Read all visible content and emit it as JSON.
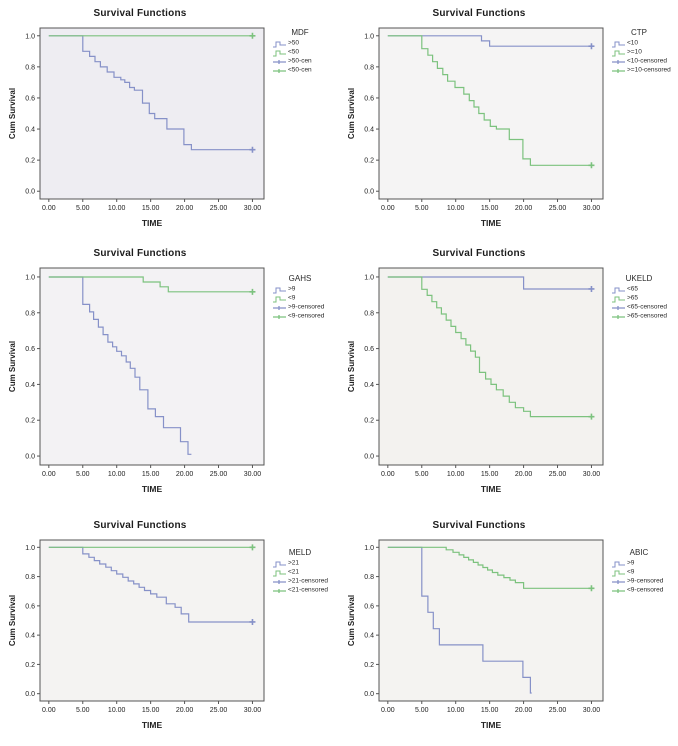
{
  "colors": {
    "blue": "#8691c8",
    "green": "#7cc27e",
    "frame": "#555555",
    "tick_text": "#222222"
  },
  "chart_data": [
    {
      "type": "line",
      "title": "Survival Functions",
      "xlabel": "TIME",
      "ylabel": "Cum Survival",
      "xlim": [
        0,
        30
      ],
      "ylim": [
        0,
        1
      ],
      "grid": false,
      "plot_bg": "#eeedf2",
      "xticks": [
        "0.00",
        "5.00",
        "10.00",
        "15.00",
        "20.00",
        "25.00",
        "30.00"
      ],
      "yticks": [
        "0.0",
        "0.2",
        "0.4",
        "0.6",
        "0.8",
        "1.0"
      ],
      "legend": {
        "title": "MDF",
        "position": "right",
        "entries": [
          {
            "label": ">50",
            "color": "blue",
            "type": "line"
          },
          {
            "label": "<50",
            "color": "green",
            "type": "line"
          },
          {
            "label": ">50-cen",
            "color": "blue",
            "type": "censored"
          },
          {
            "label": "<50-cen",
            "color": "green",
            "type": "censored"
          }
        ]
      },
      "series": [
        {
          "name": ">50",
          "color": "blue",
          "steps": [
            [
              0,
              1
            ],
            [
              5,
              0.9
            ],
            [
              6,
              0.867
            ],
            [
              6.8,
              0.833
            ],
            [
              7.6,
              0.8
            ],
            [
              8.6,
              0.767
            ],
            [
              9.6,
              0.733
            ],
            [
              10.6,
              0.717
            ],
            [
              11.2,
              0.7
            ],
            [
              11.9,
              0.667
            ],
            [
              12.6,
              0.65
            ],
            [
              13.8,
              0.567
            ],
            [
              14.8,
              0.5
            ],
            [
              15.6,
              0.467
            ],
            [
              17.4,
              0.4
            ],
            [
              19.9,
              0.3
            ],
            [
              21,
              0.267
            ]
          ],
          "end": 30,
          "censor": [
            [
              30,
              0.267
            ]
          ]
        },
        {
          "name": "<50",
          "color": "green",
          "steps": [
            [
              0,
              1
            ]
          ],
          "end": 30,
          "censor": [
            [
              30,
              1
            ]
          ]
        }
      ]
    },
    {
      "type": "line",
      "title": "Survival Functions",
      "xlabel": "TIME",
      "ylabel": "Cum Survival",
      "xlim": [
        0,
        30
      ],
      "ylim": [
        0,
        1
      ],
      "grid": false,
      "plot_bg": "#f5f4f4",
      "xticks": [
        "0.00",
        "5.00",
        "10.00",
        "15.00",
        "20.00",
        "25.00",
        "30.00"
      ],
      "yticks": [
        "0.0",
        "0.2",
        "0.4",
        "0.6",
        "0.8",
        "1.0"
      ],
      "legend": {
        "title": "CTP",
        "position": "right",
        "entries": [
          {
            "label": "<10",
            "color": "blue",
            "type": "line"
          },
          {
            "label": ">=10",
            "color": "green",
            "type": "line"
          },
          {
            "label": "<10-censored",
            "color": "blue",
            "type": "censored"
          },
          {
            "label": ">=10-censored",
            "color": "green",
            "type": "censored"
          }
        ]
      },
      "series": [
        {
          "name": "<10",
          "color": "blue",
          "steps": [
            [
              0,
              1
            ],
            [
              13.8,
              0.967
            ],
            [
              15,
              0.933
            ]
          ],
          "end": 30,
          "censor": [
            [
              30,
              0.933
            ]
          ]
        },
        {
          "name": ">=10",
          "color": "green",
          "steps": [
            [
              0,
              1
            ],
            [
              5,
              0.917
            ],
            [
              5.9,
              0.875
            ],
            [
              6.6,
              0.833
            ],
            [
              7.3,
              0.79
            ],
            [
              8.1,
              0.75
            ],
            [
              8.8,
              0.708
            ],
            [
              9.9,
              0.667
            ],
            [
              11.2,
              0.625
            ],
            [
              12,
              0.583
            ],
            [
              12.7,
              0.542
            ],
            [
              13.4,
              0.5
            ],
            [
              14.2,
              0.458
            ],
            [
              15.1,
              0.417
            ],
            [
              16,
              0.4
            ],
            [
              17.9,
              0.333
            ],
            [
              19.9,
              0.208
            ],
            [
              21,
              0.167
            ]
          ],
          "end": 30,
          "censor": [
            [
              30,
              0.167
            ]
          ]
        }
      ]
    },
    {
      "type": "line",
      "title": "Survival Functions",
      "xlabel": "TIME",
      "ylabel": "Cum Survival",
      "xlim": [
        0,
        30
      ],
      "ylim": [
        0,
        1
      ],
      "grid": false,
      "plot_bg": "#f3f2f4",
      "xticks": [
        "0.00",
        "5.00",
        "10.00",
        "15.00",
        "20.00",
        "25.00",
        "30.00"
      ],
      "yticks": [
        "0.0",
        "0.2",
        "0.4",
        "0.6",
        "0.8",
        "1.0"
      ],
      "legend": {
        "title": "GAHS",
        "position": "right",
        "entries": [
          {
            "label": ">9",
            "color": "blue",
            "type": "line"
          },
          {
            "label": "<9",
            "color": "green",
            "type": "line"
          },
          {
            "label": ">9-censored",
            "color": "blue",
            "type": "censored"
          },
          {
            "label": "<9-censored",
            "color": "green",
            "type": "censored"
          }
        ]
      },
      "series": [
        {
          "name": ">9",
          "color": "blue",
          "steps": [
            [
              0,
              1
            ],
            [
              5,
              0.847
            ],
            [
              6,
              0.805
            ],
            [
              6.6,
              0.763
            ],
            [
              7.3,
              0.72
            ],
            [
              8,
              0.678
            ],
            [
              8.7,
              0.636
            ],
            [
              9.4,
              0.61
            ],
            [
              10,
              0.585
            ],
            [
              10.7,
              0.56
            ],
            [
              11.4,
              0.525
            ],
            [
              12,
              0.49
            ],
            [
              12.7,
              0.44
            ],
            [
              13.4,
              0.37
            ],
            [
              14.6,
              0.263
            ],
            [
              15.7,
              0.22
            ],
            [
              16.9,
              0.158
            ],
            [
              19.4,
              0.08
            ],
            [
              20.5,
              0.01
            ]
          ],
          "end": 21,
          "censor": []
        },
        {
          "name": "<9",
          "color": "green",
          "steps": [
            [
              0,
              1
            ],
            [
              13.9,
              0.972
            ],
            [
              16.4,
              0.945
            ],
            [
              17.6,
              0.917
            ]
          ],
          "end": 30,
          "censor": [
            [
              30,
              0.917
            ]
          ]
        }
      ]
    },
    {
      "type": "line",
      "title": "Survival Functions",
      "xlabel": "TIME",
      "ylabel": "Cum Survival",
      "xlim": [
        0,
        30
      ],
      "ylim": [
        0,
        1
      ],
      "grid": false,
      "plot_bg": "#f3f2ef",
      "xticks": [
        "0.00",
        "5.00",
        "10.00",
        "15.00",
        "20.00",
        "25.00",
        "30.00"
      ],
      "yticks": [
        "0.0",
        "0.2",
        "0.4",
        "0.6",
        "0.8",
        "1.0"
      ],
      "legend": {
        "title": "UKELD",
        "position": "right",
        "entries": [
          {
            "label": "<65",
            "color": "blue",
            "type": "line"
          },
          {
            "label": ">65",
            "color": "green",
            "type": "line"
          },
          {
            "label": "<65-censored",
            "color": "blue",
            "type": "censored"
          },
          {
            "label": ">65-censored",
            "color": "green",
            "type": "censored"
          }
        ]
      },
      "series": [
        {
          "name": "<65",
          "color": "blue",
          "steps": [
            [
              0,
              1
            ],
            [
              20,
              0.933
            ]
          ],
          "end": 30,
          "censor": [
            [
              30,
              0.933
            ]
          ]
        },
        {
          "name": ">65",
          "color": "green",
          "steps": [
            [
              0,
              1
            ],
            [
              5,
              0.931
            ],
            [
              5.8,
              0.897
            ],
            [
              6.5,
              0.862
            ],
            [
              7.2,
              0.828
            ],
            [
              7.9,
              0.793
            ],
            [
              8.6,
              0.759
            ],
            [
              9.3,
              0.724
            ],
            [
              10,
              0.69
            ],
            [
              10.8,
              0.655
            ],
            [
              11.5,
              0.62
            ],
            [
              12.2,
              0.586
            ],
            [
              12.9,
              0.552
            ],
            [
              13.5,
              0.467
            ],
            [
              14.4,
              0.43
            ],
            [
              15.2,
              0.4
            ],
            [
              16,
              0.37
            ],
            [
              17,
              0.335
            ],
            [
              17.9,
              0.3
            ],
            [
              18.8,
              0.27
            ],
            [
              20,
              0.25
            ],
            [
              21,
              0.22
            ]
          ],
          "end": 30,
          "censor": [
            [
              30,
              0.22
            ]
          ]
        }
      ]
    },
    {
      "type": "line",
      "title": "Survival Functions",
      "xlabel": "TIME",
      "ylabel": "Cum Survival",
      "xlim": [
        0,
        30
      ],
      "ylim": [
        0,
        1
      ],
      "grid": false,
      "plot_bg": "#f4f3f2",
      "xticks": [
        "0.00",
        "5.00",
        "10.00",
        "15.00",
        "20.00",
        "25.00",
        "30.00"
      ],
      "yticks": [
        "0.0",
        "0.2",
        "0.4",
        "0.6",
        "0.8",
        "1.0"
      ],
      "legend": {
        "title": "MELD",
        "position": "right",
        "entries": [
          {
            "label": ">21",
            "color": "blue",
            "type": "line"
          },
          {
            "label": "<21",
            "color": "green",
            "type": "line"
          },
          {
            "label": ">21-censored",
            "color": "blue",
            "type": "censored"
          },
          {
            "label": "<21-censored",
            "color": "green",
            "type": "censored"
          }
        ]
      },
      "series": [
        {
          "name": ">21",
          "color": "blue",
          "steps": [
            [
              0,
              1
            ],
            [
              5,
              0.955
            ],
            [
              5.9,
              0.932
            ],
            [
              6.7,
              0.909
            ],
            [
              7.5,
              0.886
            ],
            [
              8.4,
              0.864
            ],
            [
              9.2,
              0.84
            ],
            [
              10,
              0.818
            ],
            [
              10.9,
              0.795
            ],
            [
              11.7,
              0.77
            ],
            [
              12.5,
              0.75
            ],
            [
              13.3,
              0.727
            ],
            [
              14.1,
              0.705
            ],
            [
              15,
              0.682
            ],
            [
              15.9,
              0.659
            ],
            [
              17.3,
              0.614
            ],
            [
              18.6,
              0.59
            ],
            [
              19.5,
              0.545
            ],
            [
              20.6,
              0.49
            ]
          ],
          "end": 30,
          "censor": [
            [
              30,
              0.49
            ]
          ]
        },
        {
          "name": "<21",
          "color": "green",
          "steps": [
            [
              0,
              1
            ]
          ],
          "end": 30,
          "censor": [
            [
              30,
              1
            ]
          ]
        }
      ]
    },
    {
      "type": "line",
      "title": "Survival Functions",
      "xlabel": "TIME",
      "ylabel": "Cum Survival",
      "xlim": [
        0,
        30
      ],
      "ylim": [
        0,
        1
      ],
      "grid": false,
      "plot_bg": "#f4f3f1",
      "xticks": [
        "0.00",
        "5.00",
        "10.00",
        "15.00",
        "20.00",
        "25.00",
        "30.00"
      ],
      "yticks": [
        "0.0",
        "0.2",
        "0.4",
        "0.6",
        "0.8",
        "1.0"
      ],
      "legend": {
        "title": "ABIC",
        "position": "right",
        "entries": [
          {
            "label": ">9",
            "color": "blue",
            "type": "line"
          },
          {
            "label": "<9",
            "color": "green",
            "type": "line"
          },
          {
            "label": ">9-censored",
            "color": "blue",
            "type": "censored"
          },
          {
            "label": "<9-censored",
            "color": "green",
            "type": "censored"
          }
        ]
      },
      "series": [
        {
          "name": ">9",
          "color": "blue",
          "steps": [
            [
              0,
              1
            ],
            [
              5,
              0.667
            ],
            [
              5.9,
              0.556
            ],
            [
              6.7,
              0.444
            ],
            [
              7.6,
              0.333
            ],
            [
              14,
              0.222
            ],
            [
              19.9,
              0.111
            ],
            [
              21,
              0.005
            ]
          ],
          "end": 21.2,
          "censor": []
        },
        {
          "name": "<9",
          "color": "green",
          "steps": [
            [
              0,
              1
            ],
            [
              8.6,
              0.983
            ],
            [
              9.6,
              0.966
            ],
            [
              10.5,
              0.948
            ],
            [
              11.2,
              0.931
            ],
            [
              11.9,
              0.914
            ],
            [
              12.6,
              0.897
            ],
            [
              13.3,
              0.879
            ],
            [
              14,
              0.862
            ],
            [
              14.7,
              0.845
            ],
            [
              15.4,
              0.828
            ],
            [
              16.2,
              0.81
            ],
            [
              17.1,
              0.793
            ],
            [
              18,
              0.776
            ],
            [
              18.8,
              0.759
            ],
            [
              20,
              0.72
            ]
          ],
          "end": 30,
          "censor": [
            [
              30,
              0.72
            ]
          ]
        }
      ]
    }
  ]
}
